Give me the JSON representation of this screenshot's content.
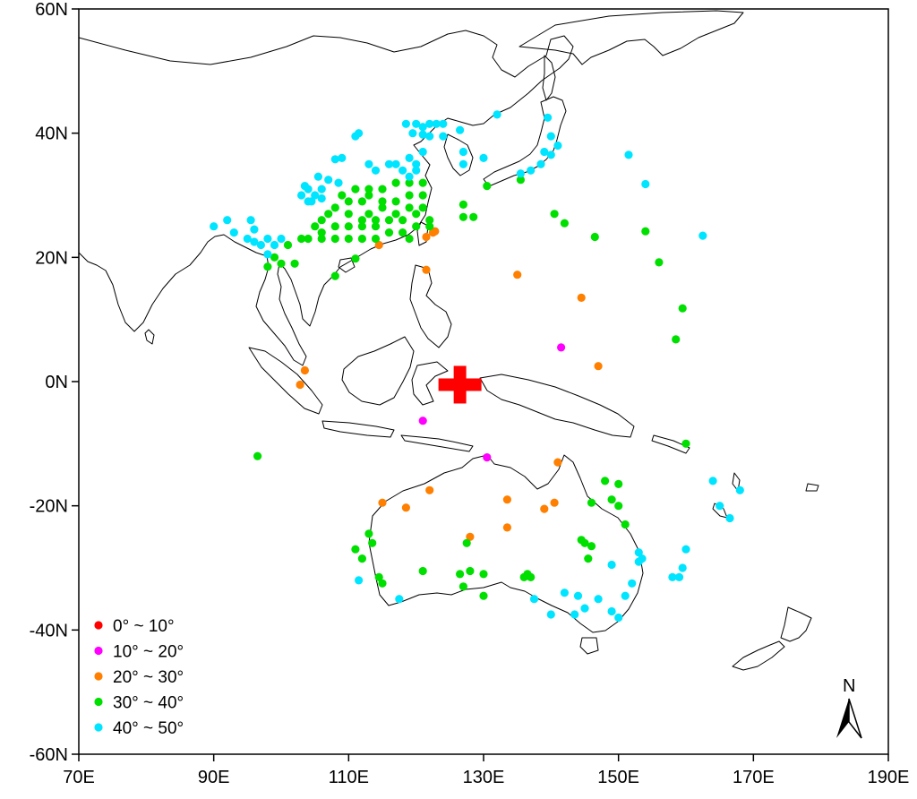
{
  "map": {
    "x_ticks": [
      {
        "lon": 70,
        "label": "70E"
      },
      {
        "lon": 90,
        "label": "90E"
      },
      {
        "lon": 110,
        "label": "110E"
      },
      {
        "lon": 130,
        "label": "130E"
      },
      {
        "lon": 150,
        "label": "150E"
      },
      {
        "lon": 170,
        "label": "170E"
      },
      {
        "lon": 190,
        "label": "190E"
      }
    ],
    "y_ticks": [
      {
        "lat": 60,
        "label": "60N"
      },
      {
        "lat": 40,
        "label": "40N"
      },
      {
        "lat": 20,
        "label": "20N"
      },
      {
        "lat": 0,
        "label": "0N"
      },
      {
        "lat": -20,
        "label": "-20N"
      },
      {
        "lat": -40,
        "label": "-40N"
      },
      {
        "lat": -60,
        "label": "-60N"
      }
    ],
    "lon_range": [
      70,
      190
    ],
    "lat_range": [
      -60,
      60
    ],
    "north_arrow_label": "N",
    "marker": {
      "lon": 126.5,
      "lat": -0.5,
      "color": "#ff0000",
      "symbol": "cross"
    },
    "legend": [
      {
        "label": "0°  ~ 10°",
        "color": "#ff0000"
      },
      {
        "label": "10°  ~ 20°",
        "color": "#ff00ff"
      },
      {
        "label": "20°  ~ 30°",
        "color": "#ff7f00"
      },
      {
        "label": "30°  ~ 40°",
        "color": "#00e000"
      },
      {
        "label": "40°  ~ 50°",
        "color": "#00e5ff"
      }
    ],
    "stations": {
      "magenta": [
        [
          141.5,
          5.5
        ],
        [
          121,
          -6.3
        ],
        [
          130.5,
          -12.2
        ]
      ],
      "orange": [
        [
          114.5,
          22
        ],
        [
          121.5,
          23.3
        ],
        [
          122.5,
          24
        ],
        [
          122.8,
          24.2
        ],
        [
          121.5,
          18
        ],
        [
          135,
          17.2
        ],
        [
          144.5,
          13.5
        ],
        [
          147,
          2.5
        ],
        [
          103.5,
          1.8
        ],
        [
          102.8,
          -0.5
        ],
        [
          141,
          -13
        ],
        [
          115,
          -19.5
        ],
        [
          118.5,
          -20.3
        ],
        [
          122,
          -17.5
        ],
        [
          133.5,
          -19
        ],
        [
          139,
          -20.5
        ],
        [
          140.5,
          -19.5
        ],
        [
          133.5,
          -23.5
        ],
        [
          128,
          -25
        ]
      ],
      "green": [
        [
          127,
          28.5
        ],
        [
          128.5,
          26.5
        ],
        [
          127,
          26.5
        ],
        [
          130.5,
          31.5
        ],
        [
          135.5,
          32.5
        ],
        [
          140.5,
          27
        ],
        [
          142,
          25.5
        ],
        [
          146.5,
          23.3
        ],
        [
          154,
          24.2
        ],
        [
          156,
          19.2
        ],
        [
          159.5,
          11.8
        ],
        [
          158.5,
          6.8
        ],
        [
          160,
          -10
        ],
        [
          96.5,
          -12
        ],
        [
          108,
          17
        ],
        [
          111,
          19.8
        ],
        [
          110,
          25
        ],
        [
          112,
          26
        ],
        [
          114,
          25
        ],
        [
          116,
          24
        ],
        [
          118,
          26
        ],
        [
          120,
          27
        ],
        [
          119,
          23
        ],
        [
          122,
          25
        ],
        [
          121,
          30
        ],
        [
          119,
          30
        ],
        [
          117,
          29
        ],
        [
          115,
          28
        ],
        [
          113,
          27
        ],
        [
          112,
          29
        ],
        [
          110,
          29
        ],
        [
          108,
          28
        ],
        [
          107,
          27
        ],
        [
          106,
          26
        ],
        [
          105,
          25
        ],
        [
          104,
          23
        ],
        [
          106,
          23
        ],
        [
          108,
          23
        ],
        [
          110,
          23
        ],
        [
          112,
          23
        ],
        [
          114,
          23
        ],
        [
          113,
          30
        ],
        [
          115,
          31
        ],
        [
          117,
          32
        ],
        [
          119,
          32
        ],
        [
          121,
          32
        ],
        [
          116,
          26
        ],
        [
          114,
          26
        ],
        [
          112,
          25
        ],
        [
          110,
          27
        ],
        [
          108,
          25
        ],
        [
          106,
          24
        ],
        [
          109,
          30
        ],
        [
          111,
          31
        ],
        [
          113,
          31
        ],
        [
          115,
          29
        ],
        [
          117,
          27
        ],
        [
          119,
          28
        ],
        [
          121,
          28
        ],
        [
          118,
          24
        ],
        [
          120,
          25
        ],
        [
          122,
          26
        ],
        [
          103,
          23
        ],
        [
          101,
          22
        ],
        [
          99,
          20
        ],
        [
          98,
          18.5
        ],
        [
          100,
          19
        ],
        [
          102,
          19
        ],
        [
          148,
          -16
        ],
        [
          150,
          -16.5
        ],
        [
          149,
          -19
        ],
        [
          150,
          -20
        ],
        [
          151,
          -23
        ],
        [
          146,
          -19.5
        ],
        [
          145,
          -26
        ],
        [
          146,
          -26.5
        ],
        [
          145.5,
          -28.5
        ],
        [
          144.5,
          -25.5
        ],
        [
          127.5,
          -26
        ],
        [
          121,
          -30.5
        ],
        [
          126.5,
          -31
        ],
        [
          128,
          -30.5
        ],
        [
          130,
          -31
        ],
        [
          127,
          -33
        ],
        [
          130,
          -34.5
        ],
        [
          136.5,
          -31
        ],
        [
          136,
          -31.5
        ],
        [
          137,
          -31.5
        ],
        [
          111,
          -27
        ],
        [
          112,
          -28.5
        ],
        [
          113,
          -24.5
        ],
        [
          113.5,
          -26
        ],
        [
          114.5,
          -31.5
        ],
        [
          115,
          -32.5
        ]
      ],
      "cyan": [
        [
          118.5,
          41.5
        ],
        [
          120,
          41.5
        ],
        [
          121,
          41
        ],
        [
          122,
          41.5
        ],
        [
          123,
          41.5
        ],
        [
          124,
          41.5
        ],
        [
          119.5,
          40
        ],
        [
          121,
          39.8
        ],
        [
          122,
          39.5
        ],
        [
          124,
          39.5
        ],
        [
          126.5,
          40.5
        ],
        [
          130,
          36
        ],
        [
          127,
          37
        ],
        [
          127,
          35
        ],
        [
          132,
          43
        ],
        [
          139.5,
          42.5
        ],
        [
          140,
          39.5
        ],
        [
          141,
          38
        ],
        [
          139,
          37
        ],
        [
          140,
          36.5
        ],
        [
          138.5,
          35
        ],
        [
          137,
          34
        ],
        [
          135.5,
          33.5
        ],
        [
          151.5,
          36.5
        ],
        [
          154,
          31.8
        ],
        [
          162.5,
          23.5
        ],
        [
          111.5,
          40
        ],
        [
          111,
          39.5
        ],
        [
          109,
          36
        ],
        [
          108,
          35.8
        ],
        [
          105.5,
          33
        ],
        [
          107,
          32.5
        ],
        [
          108.5,
          32
        ],
        [
          106,
          31
        ],
        [
          104,
          31
        ],
        [
          105,
          30
        ],
        [
          103,
          30
        ],
        [
          103.5,
          31.5
        ],
        [
          104,
          29
        ],
        [
          104.5,
          29
        ],
        [
          106,
          29.5
        ],
        [
          113,
          35
        ],
        [
          114,
          34
        ],
        [
          116,
          35
        ],
        [
          117,
          35
        ],
        [
          118,
          34
        ],
        [
          119,
          33
        ],
        [
          119,
          36
        ],
        [
          120,
          35
        ],
        [
          121,
          37
        ],
        [
          120,
          34
        ],
        [
          100,
          23
        ],
        [
          96,
          24.5
        ],
        [
          97,
          22
        ],
        [
          96,
          22.5
        ],
        [
          98,
          20.5
        ],
        [
          99,
          22
        ],
        [
          98,
          23
        ],
        [
          95,
          23
        ],
        [
          93,
          24
        ],
        [
          92,
          26
        ],
        [
          90,
          25
        ],
        [
          95.5,
          26
        ],
        [
          164,
          -16
        ],
        [
          168,
          -17.5
        ],
        [
          165,
          -20
        ],
        [
          166.5,
          -22
        ],
        [
          160,
          -27
        ],
        [
          159.5,
          -30
        ],
        [
          159,
          -31.5
        ],
        [
          158,
          -31.5
        ],
        [
          153,
          -27.5
        ],
        [
          153.5,
          -28.5
        ],
        [
          152,
          -32.5
        ],
        [
          151,
          -34.5
        ],
        [
          150,
          -38
        ],
        [
          149,
          -37
        ],
        [
          147,
          -35
        ],
        [
          145,
          -36.5
        ],
        [
          143.5,
          -37.5
        ],
        [
          140,
          -37.5
        ],
        [
          137.5,
          -35
        ],
        [
          142,
          -34
        ],
        [
          144,
          -34.5
        ],
        [
          149,
          -29.5
        ],
        [
          153,
          -29
        ],
        [
          117.5,
          -35
        ],
        [
          111.5,
          -32
        ]
      ]
    }
  }
}
